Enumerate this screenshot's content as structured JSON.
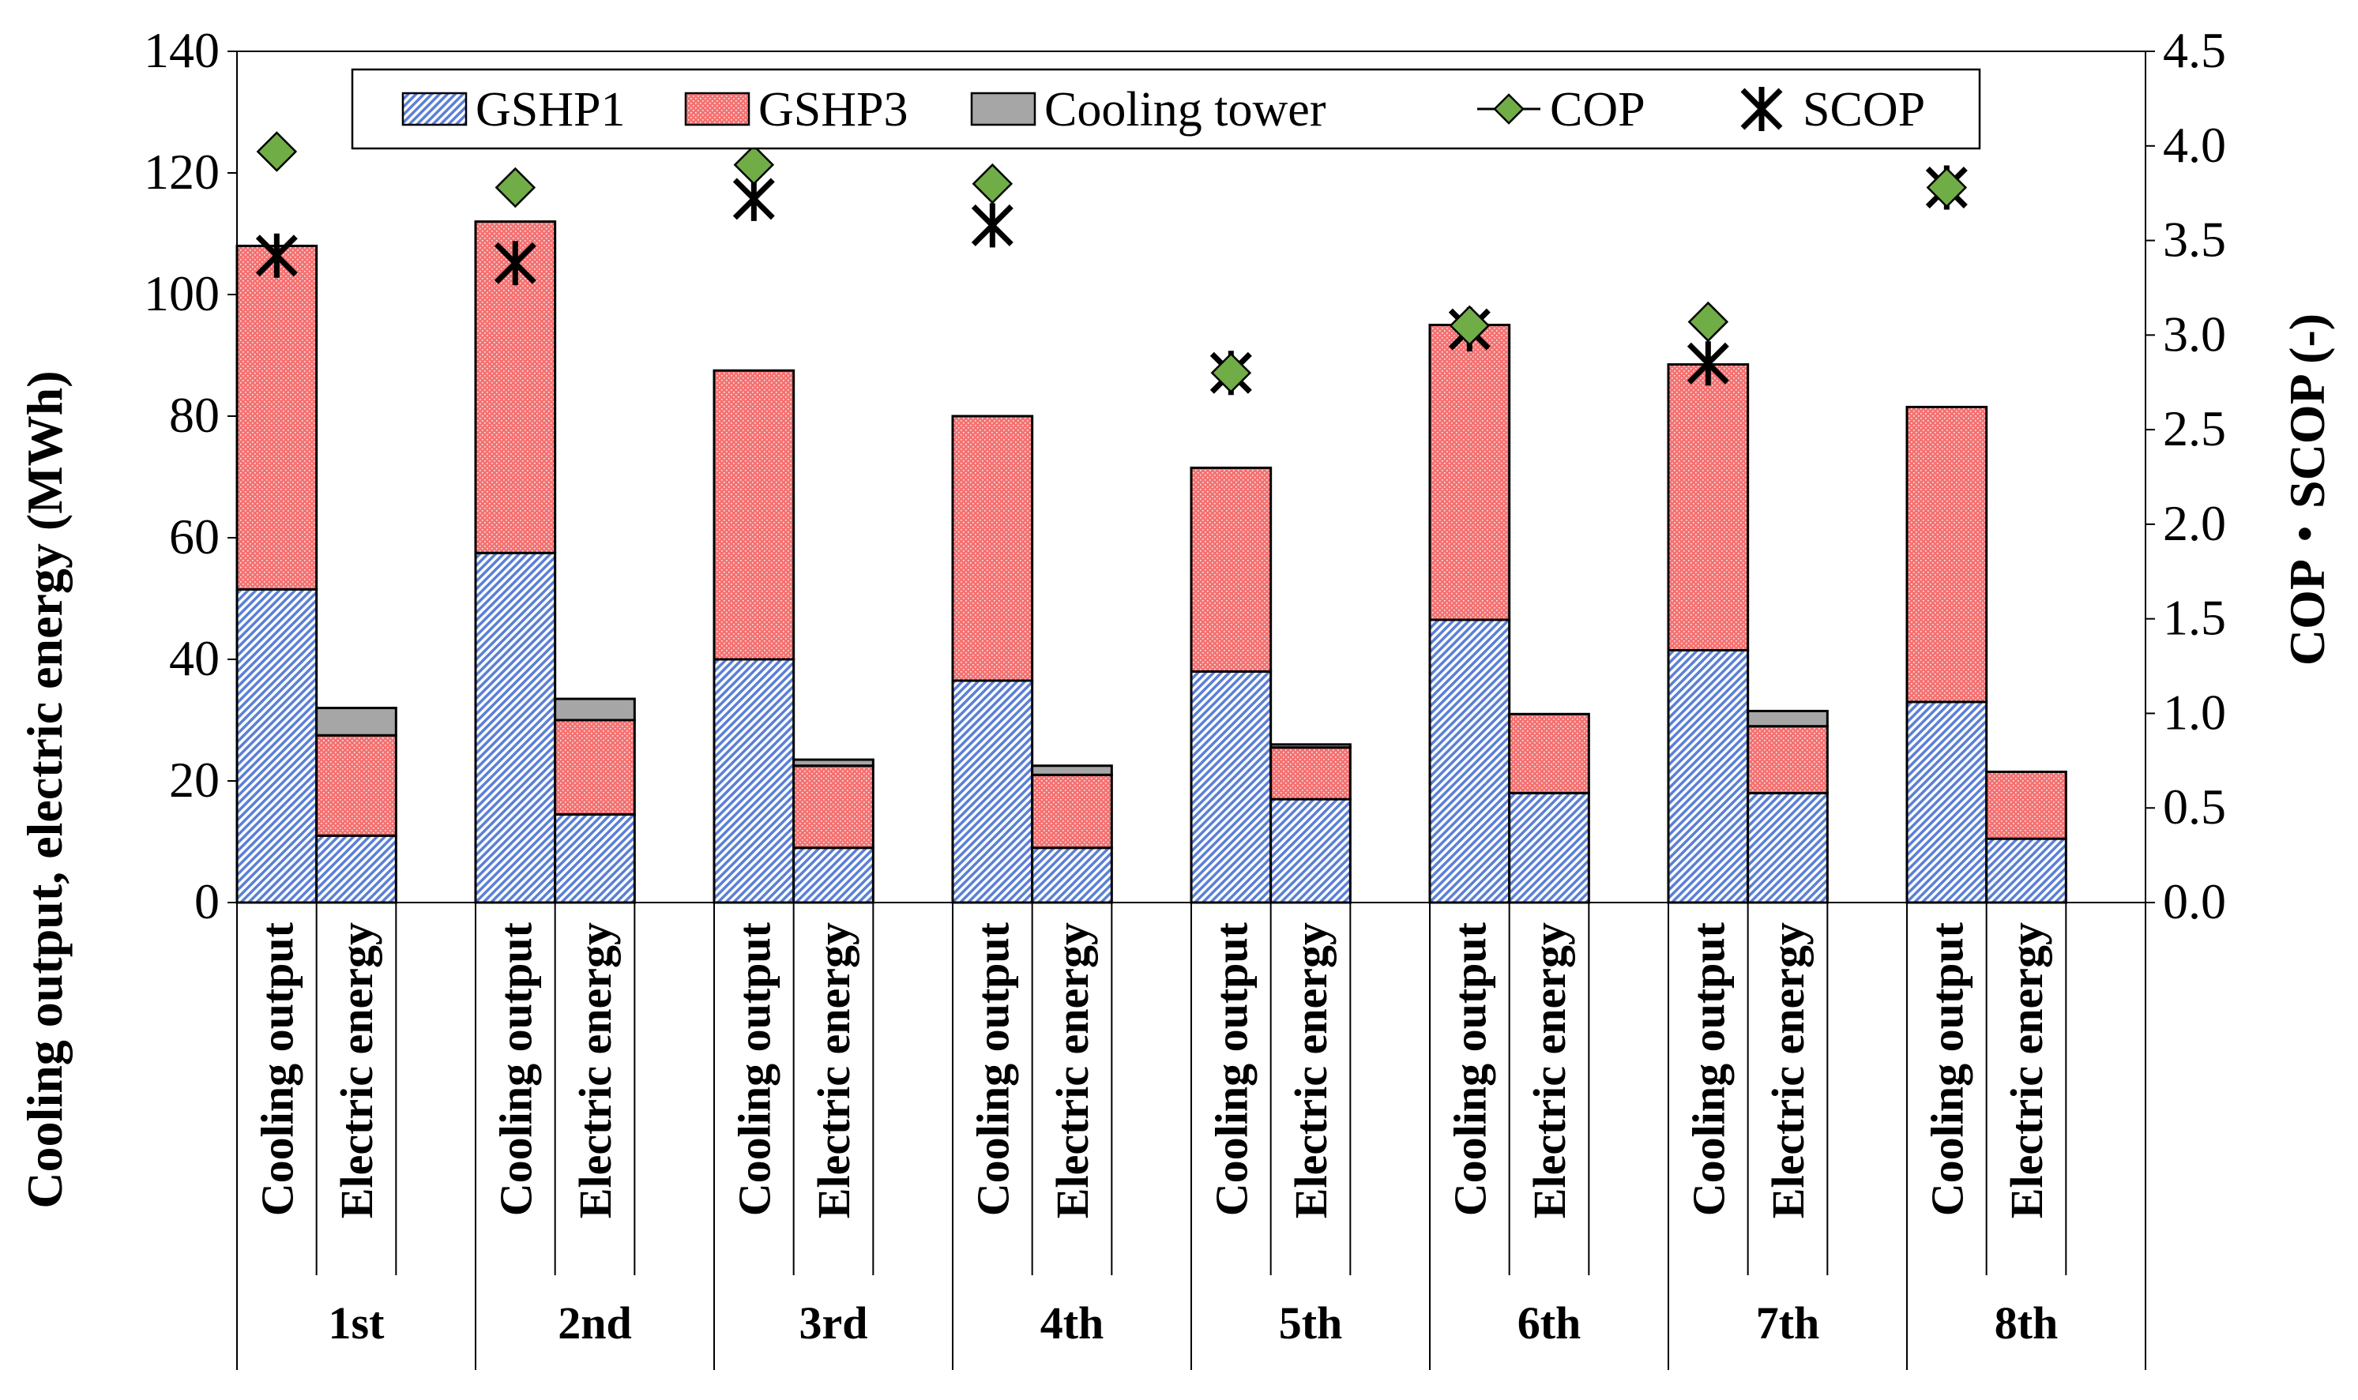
{
  "chart_data": {
    "type": "bar",
    "subtype": "stacked-bar-with-markers",
    "groups": [
      "1st",
      "2nd",
      "3rd",
      "4th",
      "5th",
      "6th",
      "7th",
      "8th"
    ],
    "bar_labels": [
      "Cooling output",
      "Electric energy"
    ],
    "ylabel": "Cooling output, electric energy (MWh)",
    "y2label": "COP・SCOP (-)",
    "ylim": [
      0,
      140
    ],
    "y_ticks": [
      "0",
      "20",
      "40",
      "60",
      "80",
      "100",
      "120",
      "140"
    ],
    "y2lim": [
      0.0,
      4.5
    ],
    "y2_ticks": [
      "0.0",
      "0.5",
      "1.0",
      "1.5",
      "2.0",
      "2.5",
      "3.0",
      "3.5",
      "4.0",
      "4.5"
    ],
    "legend": [
      "GSHP1",
      "GSHP3",
      "Cooling tower",
      "COP",
      "SCOP"
    ],
    "legend_position": "top-center",
    "colors": {
      "gshp1_fill": "#5b7fd6",
      "gshp1_bg": "#ffffff",
      "gshp3_fill": "#f47272",
      "gshp3_dots": "#ffffff",
      "cooling_tower": "#a6a6a6",
      "cop_marker": "#70ad47",
      "scop_marker": "#000000",
      "outline": "#000000"
    },
    "series": [
      {
        "name": "GSHP1",
        "bar": "Cooling output",
        "values": [
          51.5,
          57.5,
          40,
          36.5,
          38,
          46.5,
          41.5,
          33
        ]
      },
      {
        "name": "GSHP3",
        "bar": "Cooling output",
        "values": [
          56.5,
          54.5,
          47.5,
          43.5,
          33.5,
          48.5,
          47,
          48.5
        ]
      },
      {
        "name": "Cooling tower",
        "bar": "Cooling output",
        "values": [
          0,
          0,
          0,
          0,
          0,
          0,
          0,
          0
        ]
      },
      {
        "name": "GSHP1",
        "bar": "Electric energy",
        "values": [
          11,
          14.5,
          9,
          9,
          17,
          18,
          18,
          10.5
        ]
      },
      {
        "name": "GSHP3",
        "bar": "Electric energy",
        "values": [
          16.5,
          15.5,
          13.5,
          12,
          8.5,
          13,
          11,
          11
        ]
      },
      {
        "name": "Cooling tower",
        "bar": "Electric energy",
        "values": [
          4.5,
          3.5,
          1,
          1.5,
          0.5,
          0,
          2.5,
          0
        ]
      },
      {
        "name": "COP",
        "axis": "right",
        "values": [
          3.97,
          3.78,
          3.9,
          3.8,
          2.8,
          3.05,
          3.07,
          3.78
        ]
      },
      {
        "name": "SCOP",
        "axis": "right",
        "values": [
          3.42,
          3.38,
          3.72,
          3.58,
          2.8,
          3.03,
          2.85,
          3.78
        ]
      }
    ]
  }
}
